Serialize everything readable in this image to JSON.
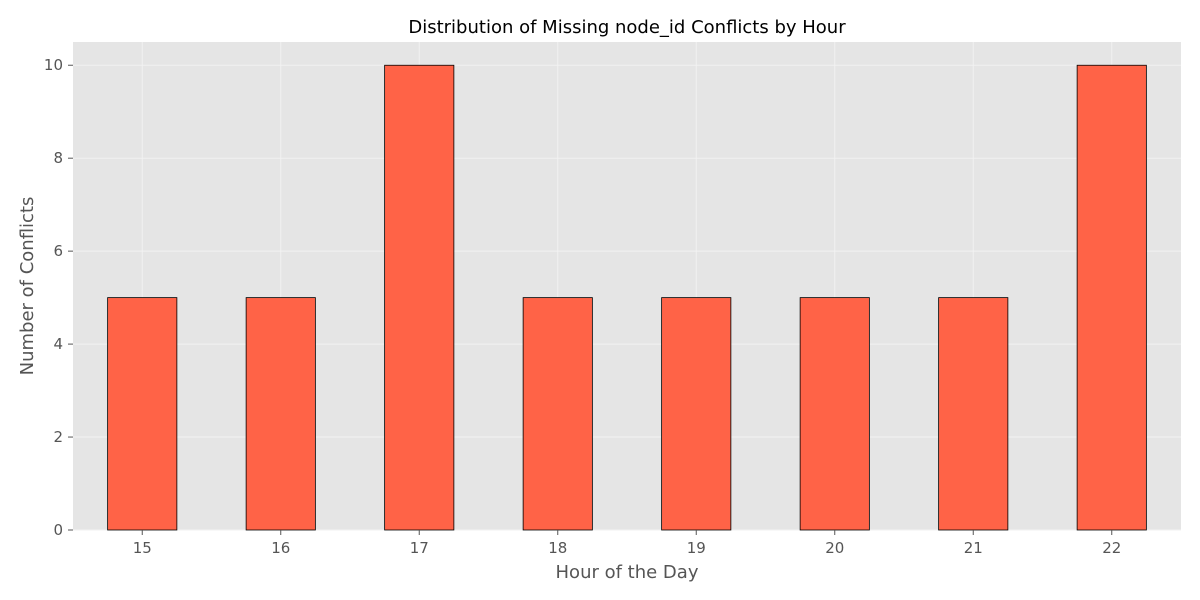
{
  "chart_data": {
    "type": "bar",
    "title": "Distribution of Missing node_id Conflicts by Hour",
    "xlabel": "Hour of the Day",
    "ylabel": "Number of Conflicts",
    "categories": [
      "15",
      "16",
      "17",
      "18",
      "19",
      "20",
      "21",
      "22"
    ],
    "values": [
      5,
      5,
      10,
      5,
      5,
      5,
      5,
      10
    ],
    "ylim": [
      0,
      10.5
    ],
    "yticks": [
      "0",
      "2",
      "4",
      "6",
      "8",
      "10"
    ],
    "grid": true,
    "legend": "none",
    "colors": {
      "bar": "#ff6347",
      "bar_edge": "#000000",
      "plot_background": "#e5e5e5",
      "grid": "#f2f2f2"
    }
  }
}
